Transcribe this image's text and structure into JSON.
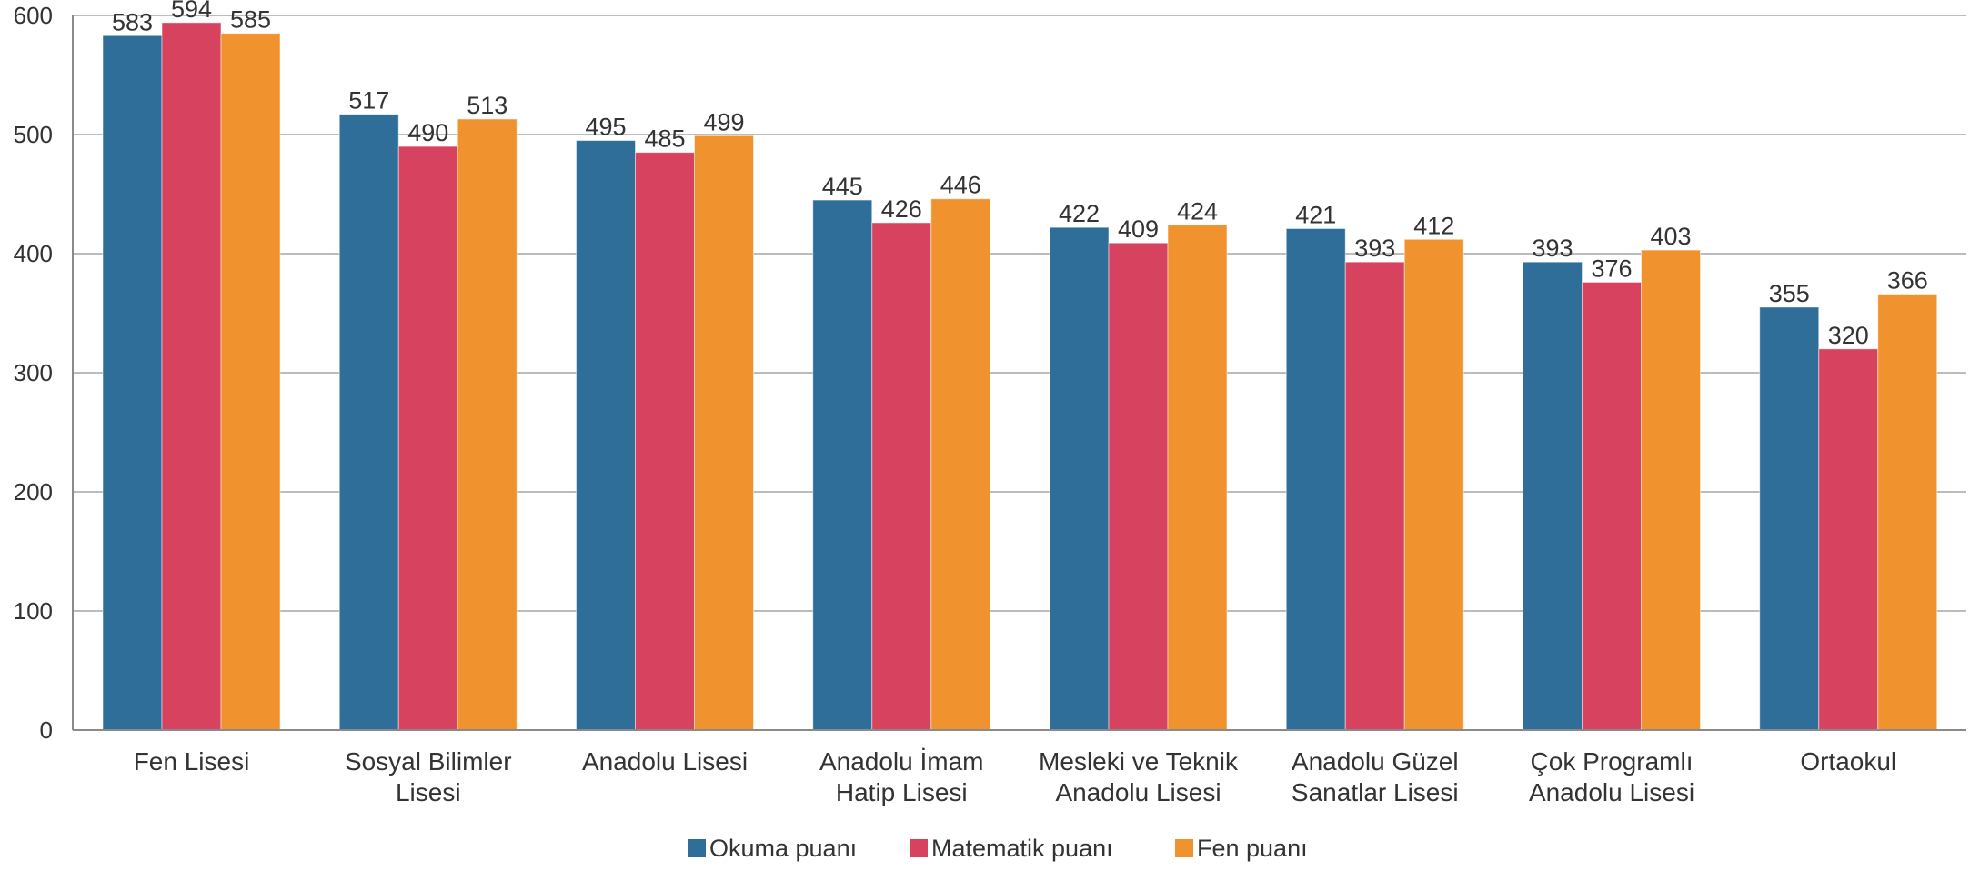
{
  "chart_data": {
    "type": "bar",
    "title": "",
    "xlabel": "",
    "ylabel": "",
    "ylim": [
      0,
      600
    ],
    "yticks": [
      0,
      100,
      200,
      300,
      400,
      500,
      600
    ],
    "grid": true,
    "legend_position": "bottom-center",
    "categories": [
      [
        "Fen Lisesi"
      ],
      [
        "Sosyal Bilimler",
        "Lisesi"
      ],
      [
        "Anadolu Lisesi"
      ],
      [
        "Anadolu İmam",
        "Hatip Lisesi"
      ],
      [
        "Mesleki ve Teknik",
        "Anadolu Lisesi"
      ],
      [
        "Anadolu Güzel",
        "Sanatlar Lisesi"
      ],
      [
        "Çok Programlı",
        "Anadolu Lisesi"
      ],
      [
        "Ortaokul"
      ]
    ],
    "series": [
      {
        "name": "Okuma puanı",
        "color": "#2E6E99",
        "values": [
          583,
          517,
          495,
          445,
          422,
          421,
          393,
          355
        ]
      },
      {
        "name": "Matematik puanı",
        "color": "#D7425F",
        "values": [
          594,
          490,
          485,
          426,
          409,
          393,
          376,
          320
        ]
      },
      {
        "name": "Fen puanı",
        "color": "#F0922E",
        "values": [
          585,
          513,
          499,
          446,
          424,
          412,
          403,
          366
        ]
      }
    ]
  }
}
